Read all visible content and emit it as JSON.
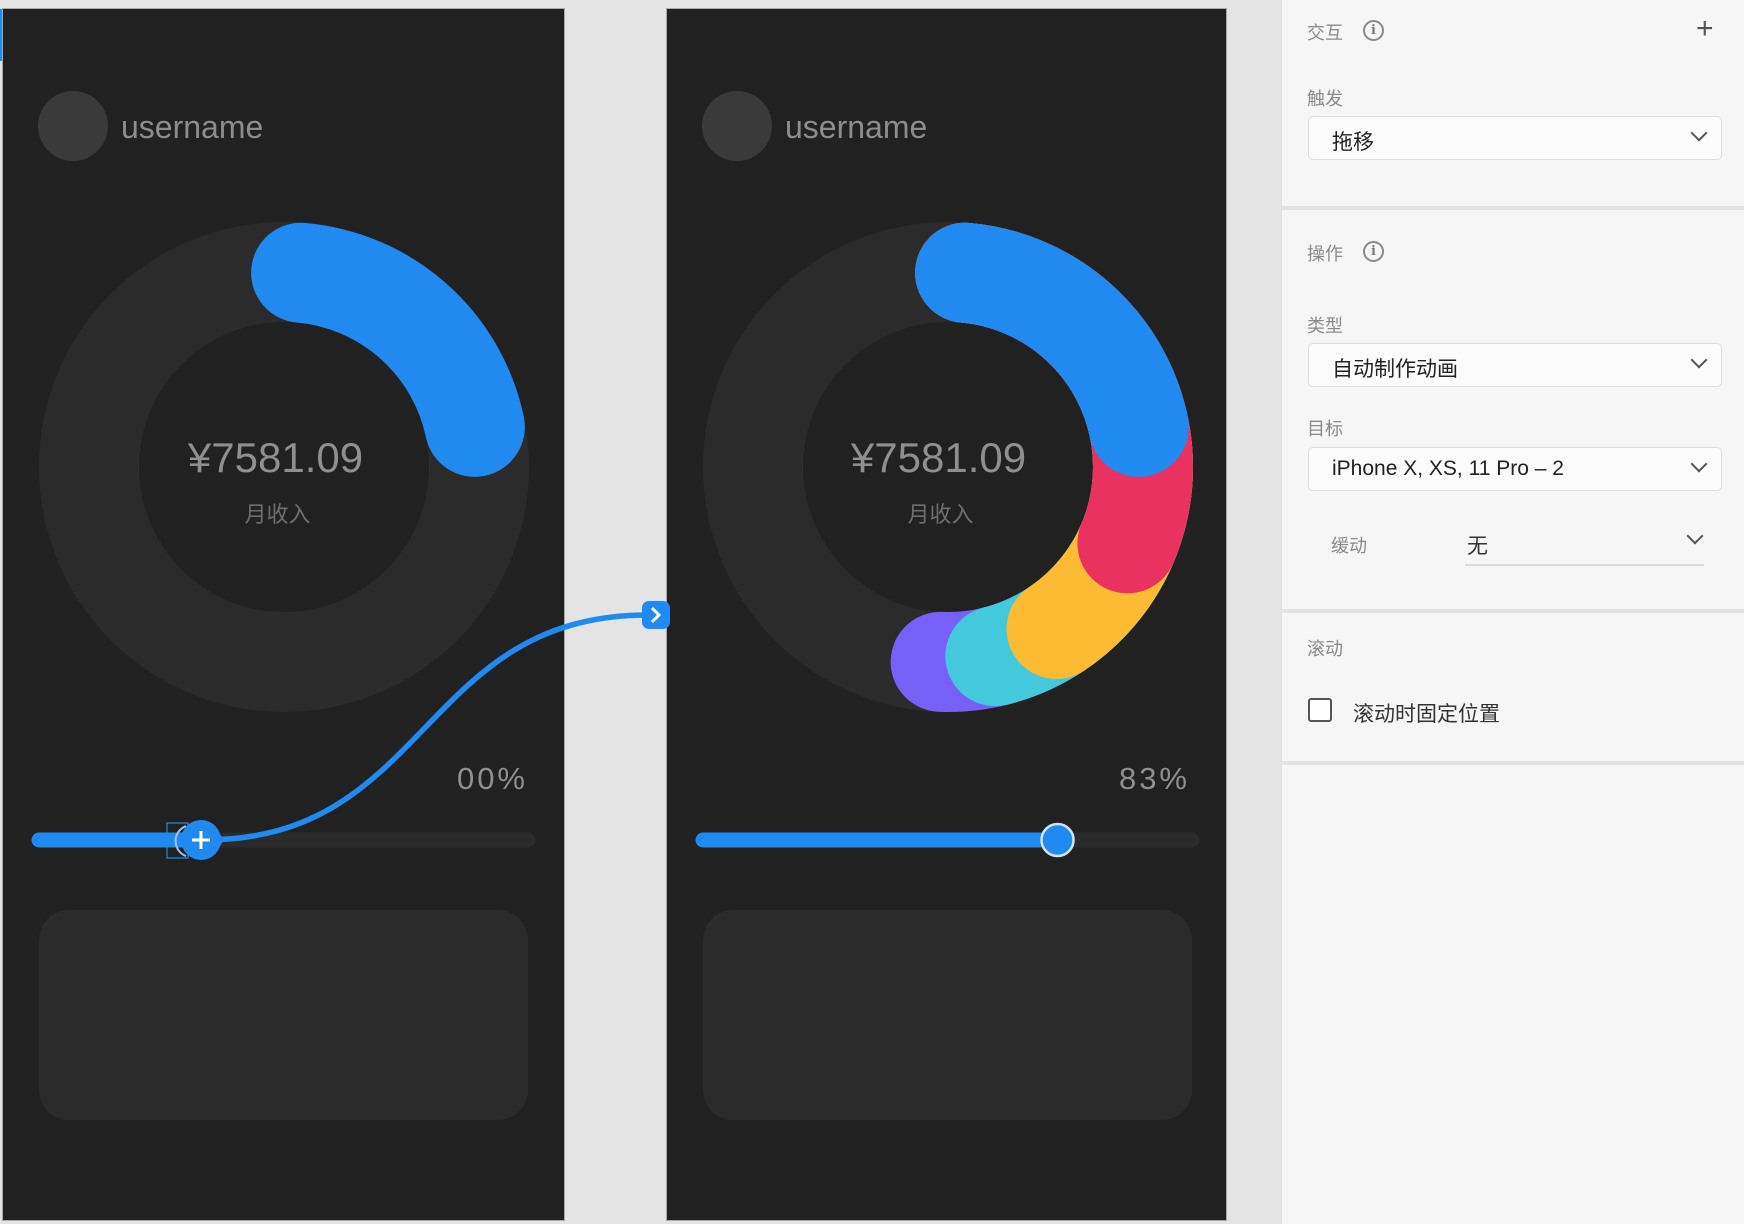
{
  "artboards": [
    {
      "username": "username",
      "amount": "¥7581.09",
      "amount_label": "月收入",
      "percent_text": "00%",
      "slider_progress": 0.36,
      "ring": {
        "start": 0.014,
        "segments": [
          {
            "color": "#218af0",
            "end": 0.217
          }
        ]
      }
    },
    {
      "username": "username",
      "amount": "¥7581.09",
      "amount_label": "月收入",
      "percent_text": "83%",
      "slider_progress": 0.725,
      "ring": {
        "start": 0.014,
        "segments": [
          {
            "color": "#7660f5",
            "end": 0.506
          },
          {
            "color": "#44c9dc",
            "end": 0.461
          },
          {
            "color": "#fdbb34",
            "end": 0.406
          },
          {
            "color": "#e93260",
            "end": 0.314
          },
          {
            "color": "#218af0",
            "end": 0.217
          }
        ]
      }
    }
  ],
  "colors": {
    "accent": "#218af0",
    "artboard_bg": "#212121",
    "track": "#2b2b2b"
  },
  "panel": {
    "interaction_title": "交互",
    "trigger_label": "触发",
    "trigger_value": "拖移",
    "action_title": "操作",
    "type_label": "类型",
    "type_value": "自动制作动画",
    "target_label": "目标",
    "target_value": "iPhone X, XS, 11 Pro – 2",
    "easing_label": "缓动",
    "easing_value": "无",
    "scroll_title": "滚动",
    "fix_position_label": "滚动时固定位置",
    "fix_position_checked": false,
    "icons": {
      "info": "info-icon",
      "add": "plus-icon",
      "dropdown": "chevron-down-icon"
    }
  }
}
